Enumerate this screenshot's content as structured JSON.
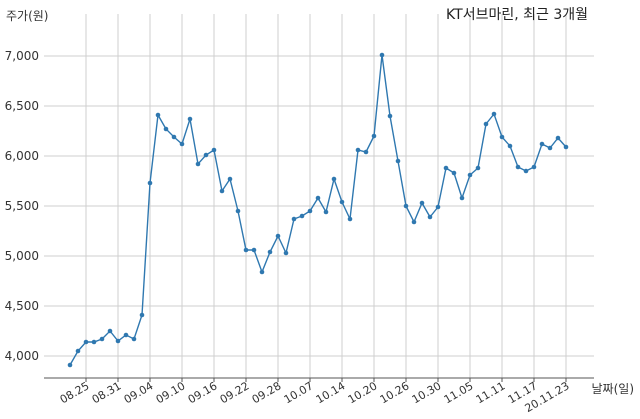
{
  "chart_data": {
    "type": "line",
    "title": "KT서브마린, 최근 3개월",
    "ylabel": "주가(원)",
    "xlabel": "날짜(일)",
    "ylim": [
      3780,
      7300
    ],
    "yticks": [
      4000,
      4500,
      5000,
      5500,
      6000,
      6500,
      7000
    ],
    "ytick_labels": [
      "4,000",
      "4,500",
      "5,000",
      "5,500",
      "6,000",
      "6,500",
      "7,000"
    ],
    "xtick_labels": [
      "08.25",
      "08.31",
      "09.04",
      "09.10",
      "09.16",
      "09.22",
      "09.28",
      "10.07",
      "10.14",
      "10.20",
      "10.26",
      "10.30",
      "11.05",
      "11.11",
      "11.17",
      "20.11.23"
    ],
    "xtick_indices": [
      2,
      6,
      10,
      14,
      18,
      22,
      26,
      30,
      34,
      38,
      42,
      46,
      50,
      54,
      58,
      62
    ],
    "grid": true,
    "color": "#2f78b0",
    "values": [
      3910,
      4050,
      4140,
      4140,
      4170,
      4250,
      4150,
      4210,
      4170,
      4410,
      5730,
      6410,
      6270,
      6190,
      6120,
      6370,
      5920,
      6010,
      6060,
      5650,
      5770,
      5450,
      5060,
      5060,
      4840,
      5040,
      5200,
      5030,
      5370,
      5400,
      5450,
      5580,
      5440,
      5770,
      5540,
      5370,
      6060,
      6040,
      6200,
      7010,
      6400,
      5950,
      5500,
      5340,
      5530,
      5390,
      5490,
      5880,
      5830,
      5580,
      5810,
      5880,
      6320,
      6420,
      6190,
      6100,
      5890,
      5850,
      5890,
      6120,
      6080,
      6180,
      6090
    ]
  }
}
